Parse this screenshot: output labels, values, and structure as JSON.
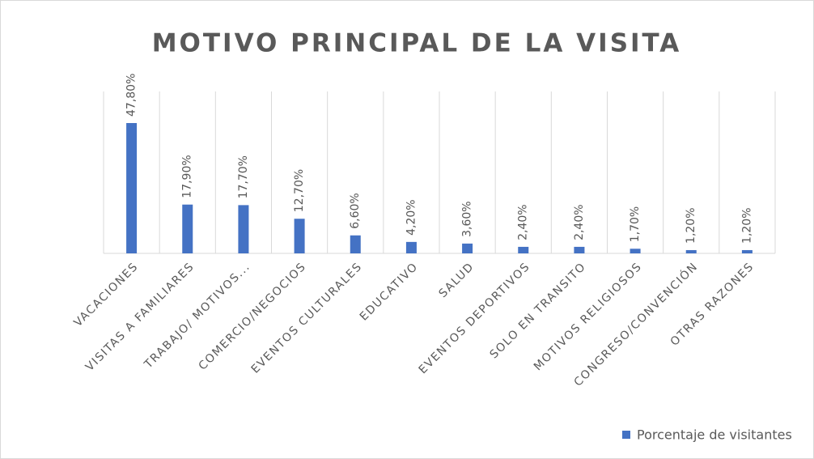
{
  "chart_data": {
    "type": "bar",
    "title": "MOTIVO PRINCIPAL DE LA VISITA",
    "categories": [
      "VACACIONES",
      "VISITAS A FAMILIARES",
      "TRABAJO/ MOTIVOS...",
      "COMERCIO/NEGOCIOS",
      "EVENTOS CULTURALES",
      "EDUCATIVO",
      "SALUD",
      "EVENTOS DEPORTIVOS",
      "SOLO EN TRANSITO",
      "MOTIVOS RELIGIOSOS",
      "CONGRESO/CONVENCIÓN",
      "OTRAS RAZONES"
    ],
    "series": [
      {
        "name": "Porcentaje de visitantes",
        "color": "#4472c4",
        "values": [
          47.8,
          17.9,
          17.7,
          12.7,
          6.6,
          4.2,
          3.6,
          2.4,
          2.4,
          1.7,
          1.2,
          1.2
        ],
        "value_labels": [
          "47,80%",
          "17,90%",
          "17,70%",
          "12,70%",
          "6,60%",
          "4,20%",
          "3,60%",
          "2,40%",
          "2,40%",
          "1,70%",
          "1,20%",
          "1,20%"
        ]
      }
    ],
    "legend": "bottom-right"
  }
}
